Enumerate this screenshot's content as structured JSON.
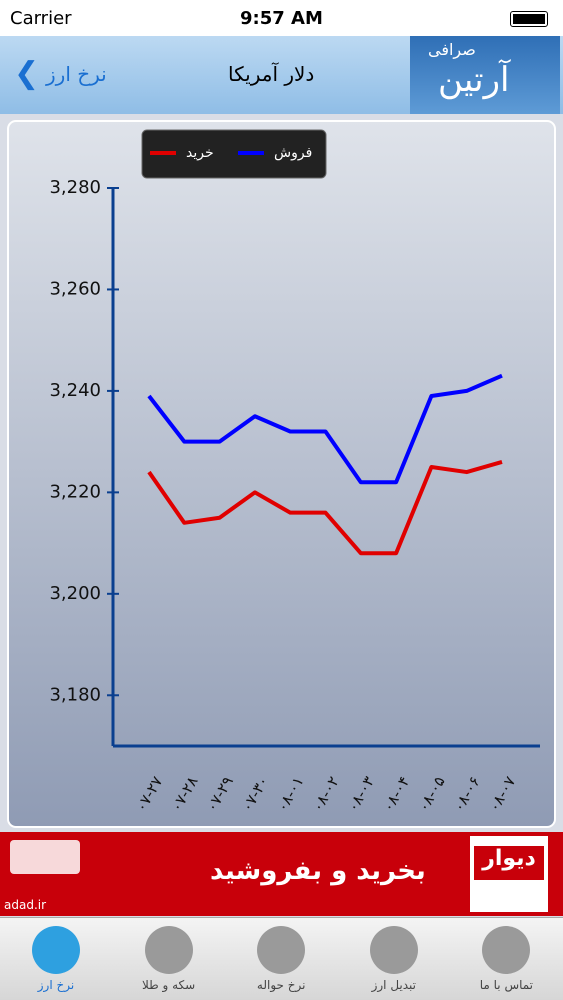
{
  "status_bar": {
    "carrier": "Carrier",
    "time": "9:57 AM"
  },
  "nav_bar": {
    "back": "نرخ ارز",
    "title": "دلار آمریکا",
    "logo_small": "صرافی",
    "logo_big": "آرتین"
  },
  "chart_data": {
    "type": "line",
    "categories": [
      "۰۷-۲۷",
      "۰۷-۲۸",
      "۰۷-۲۹",
      "۰۷-۳۰",
      "۰۸-۰۱",
      "۰۸-۰۲",
      "۰۸-۰۳",
      "۰۸-۰۴",
      "۰۸-۰۵",
      "۰۸-۰۶",
      "۰۸-۰۷"
    ],
    "series": [
      {
        "name": "خرید",
        "color": "#e00000",
        "values": [
          3224,
          3214,
          3215,
          3220,
          3216,
          3216,
          3208,
          3208,
          3225,
          3224,
          3226
        ]
      },
      {
        "name": "فروش",
        "color": "#0000ff",
        "values": [
          3239,
          3230,
          3230,
          3235,
          3232,
          3232,
          3222,
          3222,
          3239,
          3240,
          3243
        ]
      }
    ],
    "ylim": [
      3170,
      3280
    ],
    "yticks": [
      {
        "value": 3180,
        "label": "3,180"
      },
      {
        "value": 3200,
        "label": "3,200"
      },
      {
        "value": 3220,
        "label": "3,220"
      },
      {
        "value": 3240,
        "label": "3,240"
      },
      {
        "value": 3260,
        "label": "3,260"
      },
      {
        "value": 3280,
        "label": "3,280"
      }
    ],
    "legend": "top-left",
    "axis_color": "#0a3f8f"
  },
  "ad": {
    "text": "بخرید و بفروشید",
    "brand": "دیوار",
    "source": "adad.ir"
  },
  "tab_bar": {
    "items": [
      "نرخ ارز",
      "سکه و طلا",
      "نرخ حواله",
      "تبدیل ارز",
      "تماس با ما"
    ]
  }
}
